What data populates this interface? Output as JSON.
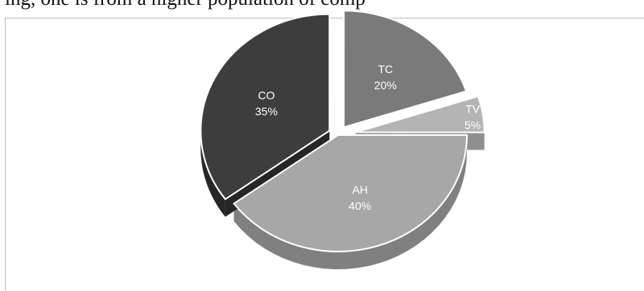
{
  "caption_fragment": "ing, one is from a higher population of comp",
  "chart_data": {
    "type": "pie",
    "style": "3d-exploded",
    "title": "",
    "legend": "none",
    "slices": [
      {
        "label": "TC",
        "value": 20,
        "value_label": "20%",
        "color": "#7a7a7a",
        "side_color": "#5a5a5a"
      },
      {
        "label": "TV",
        "value": 5,
        "value_label": "5%",
        "color": "#b4b4b4",
        "side_color": "#8f8f8f"
      },
      {
        "label": "AH",
        "value": 40,
        "value_label": "40%",
        "color": "#a7a7a7",
        "side_color": "#808080"
      },
      {
        "label": "CO",
        "value": 35,
        "value_label": "35%",
        "color": "#3d3d3d",
        "side_color": "#262626"
      }
    ]
  }
}
